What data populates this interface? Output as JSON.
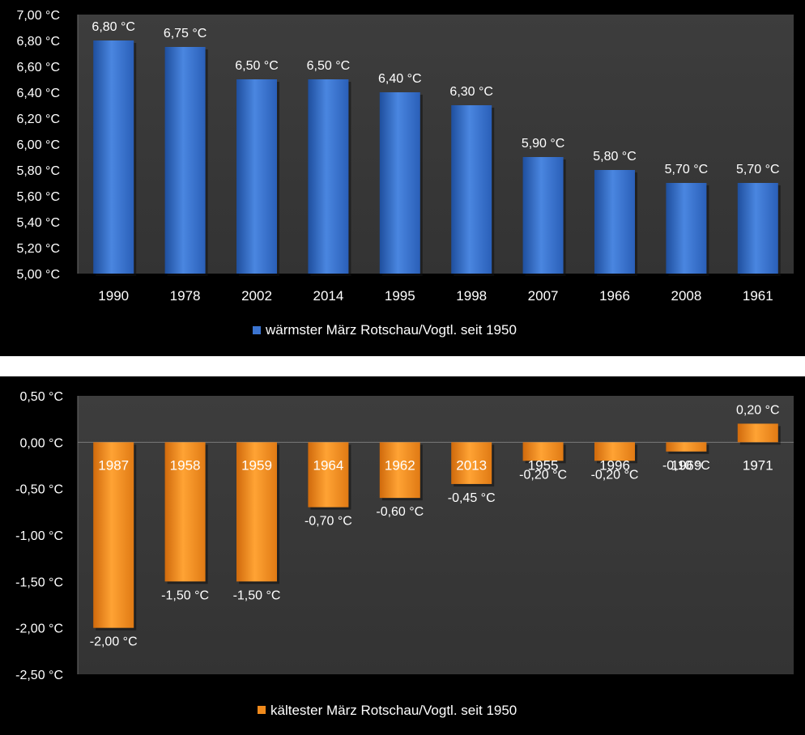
{
  "chart_data": [
    {
      "type": "bar",
      "categories": [
        "1990",
        "1978",
        "2002",
        "2014",
        "1995",
        "1998",
        "2007",
        "1966",
        "2008",
        "1961"
      ],
      "series": [
        {
          "name": "wärmster März  Rotschau/Vogtl. seit 1950",
          "values": [
            6.8,
            6.75,
            6.5,
            6.5,
            6.4,
            6.3,
            5.9,
            5.8,
            5.7,
            5.7
          ],
          "labels": [
            "6,80 °C",
            "6,75 °C",
            "6,50 °C",
            "6,50 °C",
            "6,40 °C",
            "6,30 °C",
            "5,90 °C",
            "5,80 °C",
            "5,70 °C",
            "5,70 °C"
          ]
        }
      ],
      "ylim": [
        5.0,
        7.0
      ],
      "yticks": [
        5.0,
        5.2,
        5.4,
        5.6,
        5.8,
        6.0,
        6.2,
        6.4,
        6.6,
        6.8,
        7.0
      ],
      "ytick_labels": [
        "5,00 °C",
        "5,20 °C",
        "5,40 °C",
        "5,60 °C",
        "5,80 °C",
        "6,00 °C",
        "6,20 °C",
        "6,40 °C",
        "6,60 °C",
        "6,80 °C",
        "7,00 °C"
      ],
      "grid": false,
      "legend": "bottom",
      "color": "#3b74d0"
    },
    {
      "type": "bar",
      "categories": [
        "1987",
        "1958",
        "1959",
        "1964",
        "1962",
        "2013",
        "1955",
        "1996",
        "1969",
        "1971"
      ],
      "series": [
        {
          "name": "kältester März Rotschau/Vogtl. seit 1950",
          "values": [
            -2.0,
            -1.5,
            -1.5,
            -0.7,
            -0.6,
            -0.45,
            -0.2,
            -0.2,
            -0.1,
            0.2
          ],
          "labels": [
            "-2,00 °C",
            "-1,50 °C",
            "-1,50 °C",
            "-0,70 °C",
            "-0,60 °C",
            "-0,45 °C",
            "-0,20 °C",
            "-0,20 °C",
            "-0,10 °C",
            "0,20 °C"
          ]
        }
      ],
      "ylim": [
        -2.5,
        0.5
      ],
      "yticks": [
        -2.5,
        -2.0,
        -1.5,
        -1.0,
        -0.5,
        0.0,
        0.5
      ],
      "ytick_labels": [
        "-2,50 °C",
        "-2,00 °C",
        "-1,50 °C",
        "-1,00 °C",
        "-0,50 °C",
        "0,00 °C",
        "0,50 °C"
      ],
      "grid": false,
      "legend": "bottom",
      "color": "#f08a1c"
    }
  ]
}
